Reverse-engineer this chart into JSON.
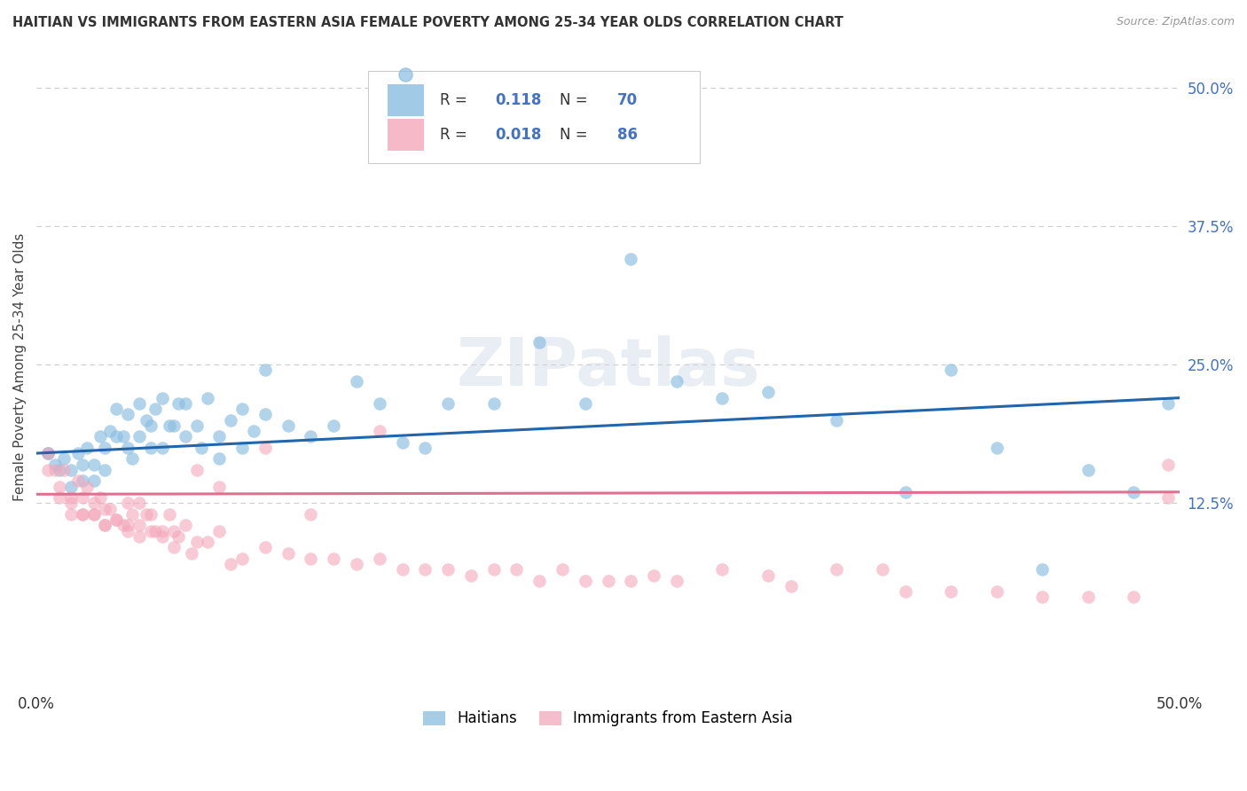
{
  "title": "HAITIAN VS IMMIGRANTS FROM EASTERN ASIA FEMALE POVERTY AMONG 25-34 YEAR OLDS CORRELATION CHART",
  "source": "Source: ZipAtlas.com",
  "ylabel": "Female Poverty Among 25-34 Year Olds",
  "xlim": [
    0.0,
    0.5
  ],
  "ylim": [
    -0.04,
    0.535
  ],
  "xtick_vals": [
    0.0,
    0.125,
    0.25,
    0.375,
    0.5
  ],
  "xtick_labels": [
    "0.0%",
    "",
    "",
    "",
    "50.0%"
  ],
  "ytick_vals_right": [
    0.5,
    0.375,
    0.25,
    0.125
  ],
  "ytick_labels_right": [
    "50.0%",
    "37.5%",
    "25.0%",
    "12.5%"
  ],
  "background_color": "#ffffff",
  "blue_color": "#89bde0",
  "pink_color": "#f4a8bb",
  "blue_line_color": "#2166ac",
  "pink_line_color": "#e07090",
  "right_tick_color": "#4472c4",
  "legend_R_blue": "0.118",
  "legend_N_blue": "70",
  "legend_R_pink": "0.018",
  "legend_N_pink": "86",
  "label_blue": "Haitians",
  "label_pink": "Immigrants from Eastern Asia",
  "watermark": "ZIPatlas",
  "blue_scatter_x": [
    0.005,
    0.008,
    0.01,
    0.012,
    0.015,
    0.015,
    0.018,
    0.02,
    0.02,
    0.022,
    0.025,
    0.025,
    0.028,
    0.03,
    0.03,
    0.032,
    0.035,
    0.035,
    0.038,
    0.04,
    0.04,
    0.042,
    0.045,
    0.045,
    0.048,
    0.05,
    0.05,
    0.052,
    0.055,
    0.055,
    0.058,
    0.06,
    0.062,
    0.065,
    0.065,
    0.07,
    0.072,
    0.075,
    0.08,
    0.08,
    0.085,
    0.09,
    0.09,
    0.095,
    0.1,
    0.1,
    0.11,
    0.12,
    0.13,
    0.14,
    0.15,
    0.16,
    0.17,
    0.18,
    0.2,
    0.22,
    0.24,
    0.26,
    0.28,
    0.3,
    0.32,
    0.35,
    0.38,
    0.4,
    0.42,
    0.44,
    0.46,
    0.48,
    0.495,
    0.005
  ],
  "blue_scatter_y": [
    0.17,
    0.16,
    0.155,
    0.165,
    0.155,
    0.14,
    0.17,
    0.16,
    0.145,
    0.175,
    0.16,
    0.145,
    0.185,
    0.175,
    0.155,
    0.19,
    0.21,
    0.185,
    0.185,
    0.205,
    0.175,
    0.165,
    0.215,
    0.185,
    0.2,
    0.195,
    0.175,
    0.21,
    0.22,
    0.175,
    0.195,
    0.195,
    0.215,
    0.215,
    0.185,
    0.195,
    0.175,
    0.22,
    0.185,
    0.165,
    0.2,
    0.21,
    0.175,
    0.19,
    0.245,
    0.205,
    0.195,
    0.185,
    0.195,
    0.235,
    0.215,
    0.18,
    0.175,
    0.215,
    0.215,
    0.27,
    0.215,
    0.345,
    0.235,
    0.22,
    0.225,
    0.2,
    0.135,
    0.245,
    0.175,
    0.065,
    0.155,
    0.135,
    0.215,
    0.17
  ],
  "pink_scatter_x": [
    0.005,
    0.008,
    0.01,
    0.012,
    0.015,
    0.015,
    0.018,
    0.02,
    0.02,
    0.022,
    0.025,
    0.025,
    0.028,
    0.03,
    0.03,
    0.032,
    0.035,
    0.038,
    0.04,
    0.04,
    0.042,
    0.045,
    0.045,
    0.048,
    0.05,
    0.052,
    0.055,
    0.058,
    0.06,
    0.062,
    0.065,
    0.068,
    0.07,
    0.075,
    0.08,
    0.085,
    0.09,
    0.1,
    0.11,
    0.12,
    0.13,
    0.14,
    0.15,
    0.16,
    0.17,
    0.18,
    0.19,
    0.2,
    0.21,
    0.22,
    0.23,
    0.24,
    0.25,
    0.26,
    0.27,
    0.28,
    0.3,
    0.32,
    0.33,
    0.35,
    0.37,
    0.38,
    0.4,
    0.42,
    0.44,
    0.46,
    0.48,
    0.495,
    0.005,
    0.01,
    0.015,
    0.02,
    0.025,
    0.03,
    0.035,
    0.04,
    0.045,
    0.05,
    0.055,
    0.06,
    0.07,
    0.08,
    0.1,
    0.12,
    0.15,
    0.495
  ],
  "pink_scatter_y": [
    0.17,
    0.155,
    0.14,
    0.155,
    0.13,
    0.115,
    0.145,
    0.13,
    0.115,
    0.14,
    0.125,
    0.115,
    0.13,
    0.12,
    0.105,
    0.12,
    0.11,
    0.105,
    0.125,
    0.1,
    0.115,
    0.125,
    0.105,
    0.115,
    0.115,
    0.1,
    0.1,
    0.115,
    0.1,
    0.095,
    0.105,
    0.08,
    0.09,
    0.09,
    0.1,
    0.07,
    0.075,
    0.085,
    0.08,
    0.075,
    0.075,
    0.07,
    0.075,
    0.065,
    0.065,
    0.065,
    0.06,
    0.065,
    0.065,
    0.055,
    0.065,
    0.055,
    0.055,
    0.055,
    0.06,
    0.055,
    0.065,
    0.06,
    0.05,
    0.065,
    0.065,
    0.045,
    0.045,
    0.045,
    0.04,
    0.04,
    0.04,
    0.16,
    0.155,
    0.13,
    0.125,
    0.115,
    0.115,
    0.105,
    0.11,
    0.105,
    0.095,
    0.1,
    0.095,
    0.085,
    0.155,
    0.14,
    0.175,
    0.115,
    0.19,
    0.13
  ]
}
